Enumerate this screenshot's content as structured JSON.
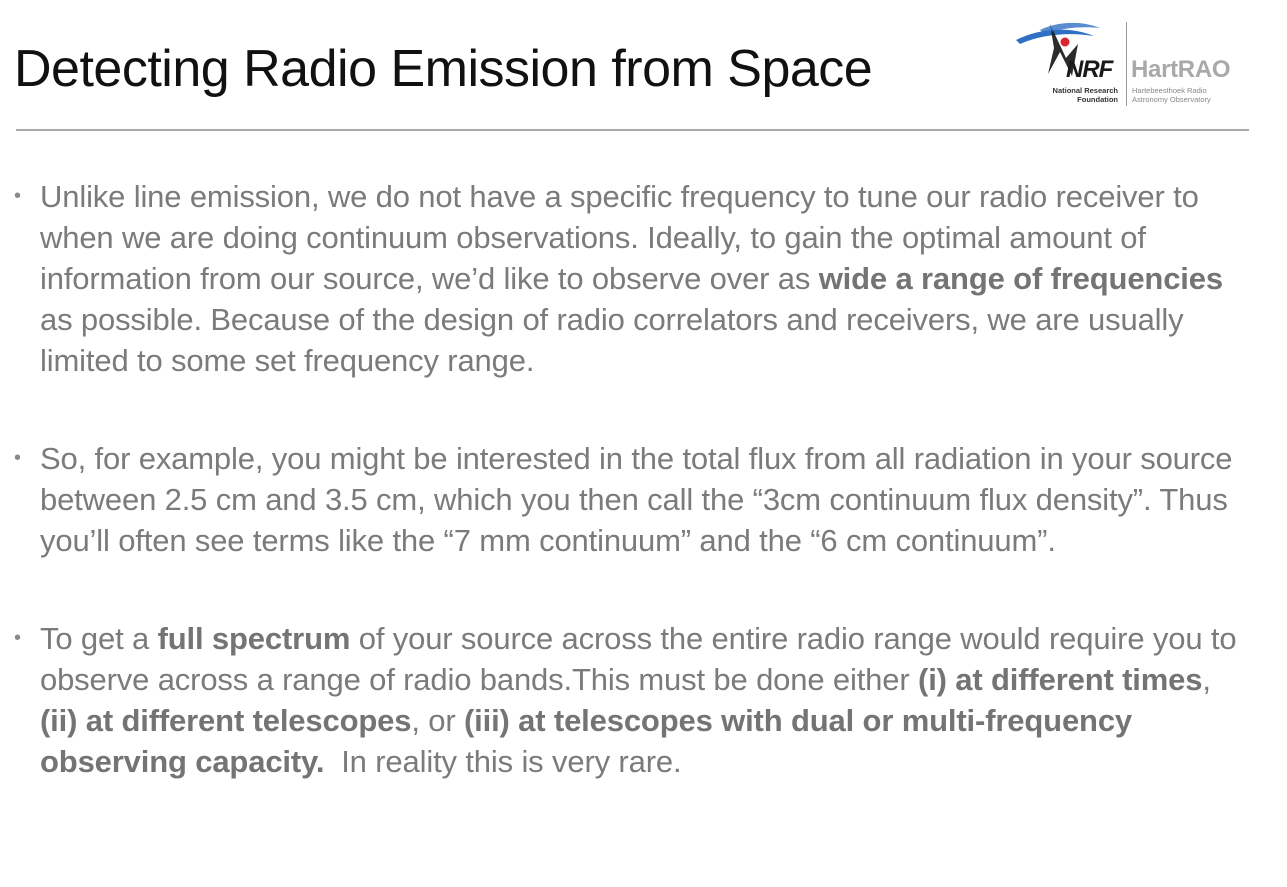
{
  "slide": {
    "title": "Detecting Radio Emission from Space"
  },
  "logo": {
    "nrf_mark": "NRF",
    "nrf_line1": "National Research",
    "nrf_line2": "Foundation",
    "hart_name": "HartRAO",
    "hart_line1": "Hartebeesthoek Radio",
    "hart_line2": "Astronomy Observatory"
  },
  "bullets": [
    {
      "p1": "Unlike line emission, we do not have a specific frequency to tune our radio receiver to when we are doing continuum observations. Ideally, to gain the optimal amount of information from our source, we’d like to observe over as ",
      "bold1": "wide a range of frequencies",
      "p2": " as possible. Because of the design of radio correlators and receivers, we are usually limited to some set frequency range."
    },
    {
      "p1": "So, for example, you might be interested in the total flux from all radiation in your source between 2.5 cm and 3.5 cm, which you then call the “3cm continuum flux density”. Thus you’ll often see terms like the “7 mm continuum” and the “6 cm continuum”."
    },
    {
      "p1": "To get a ",
      "bold1": "full spectrum",
      "p2": " of your source across the entire radio range would require you to observe across a range of radio bands.This must be done either ",
      "bold2": "(i) at different times",
      "p3": ", ",
      "bold3": "(ii) at different telescopes",
      "p4": ", or ",
      "bold4": "(iii) at telescopes with dual or multi-frequency observing capacity.",
      "p5": "  In reality this is very rare."
    }
  ],
  "colors": {
    "title": "#111111",
    "body_text": "#7b7b7b",
    "rule": "#a8a8a8",
    "nrf_blue": "#2f6fc4",
    "nrf_red": "#d9262c"
  }
}
